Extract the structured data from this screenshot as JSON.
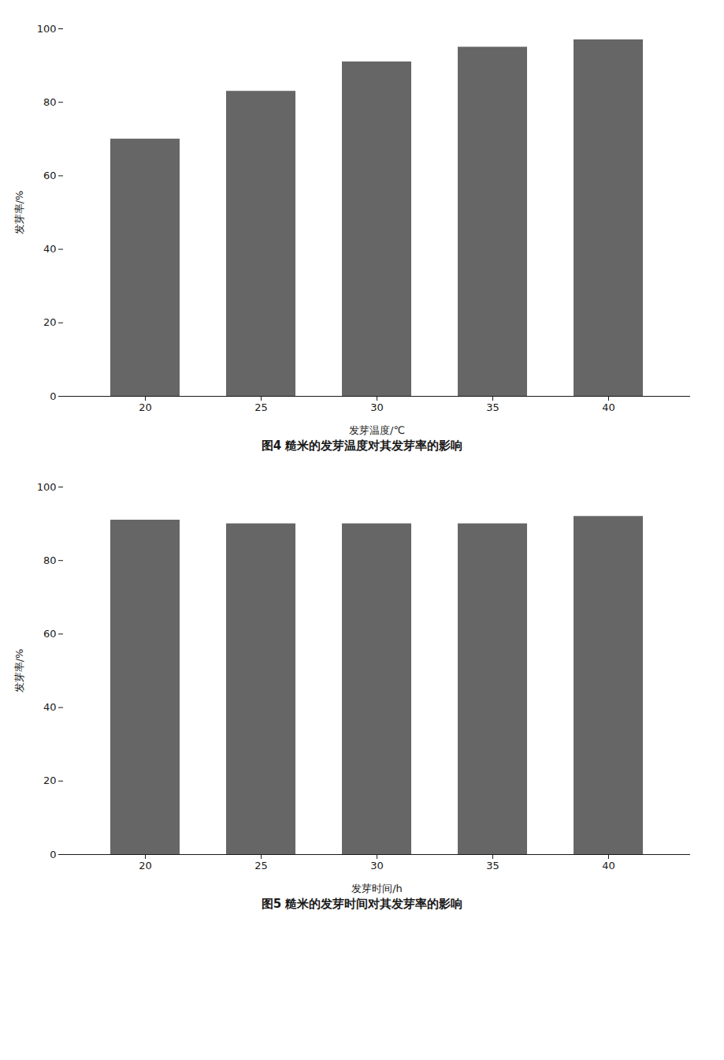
{
  "chart_data": [
    {
      "type": "bar",
      "title": "图4  糙米的发芽温度对其发芽率的影响",
      "x_label": "发芽温度/℃",
      "y_label": "发芽率/%",
      "categories": [
        "20",
        "25",
        "30",
        "35",
        "40"
      ],
      "values": [
        70,
        83,
        91,
        95,
        97
      ],
      "color": "#666666",
      "ylim": [
        0,
        100
      ],
      "yticks": [
        0,
        20,
        40,
        60,
        80,
        100
      ],
      "grid": false
    },
    {
      "type": "bar",
      "title": "图5  糙米的发芽时间对其发芽率的影响",
      "x_label": "发芽时间/h",
      "y_label": "发芽率/%",
      "categories": [
        "20",
        "25",
        "30",
        "35",
        "40"
      ],
      "values": [
        91,
        90,
        90,
        90,
        92
      ],
      "color": "#666666",
      "ylim": [
        0,
        100
      ],
      "yticks": [
        0,
        20,
        40,
        60,
        80,
        100
      ],
      "grid": false
    }
  ]
}
